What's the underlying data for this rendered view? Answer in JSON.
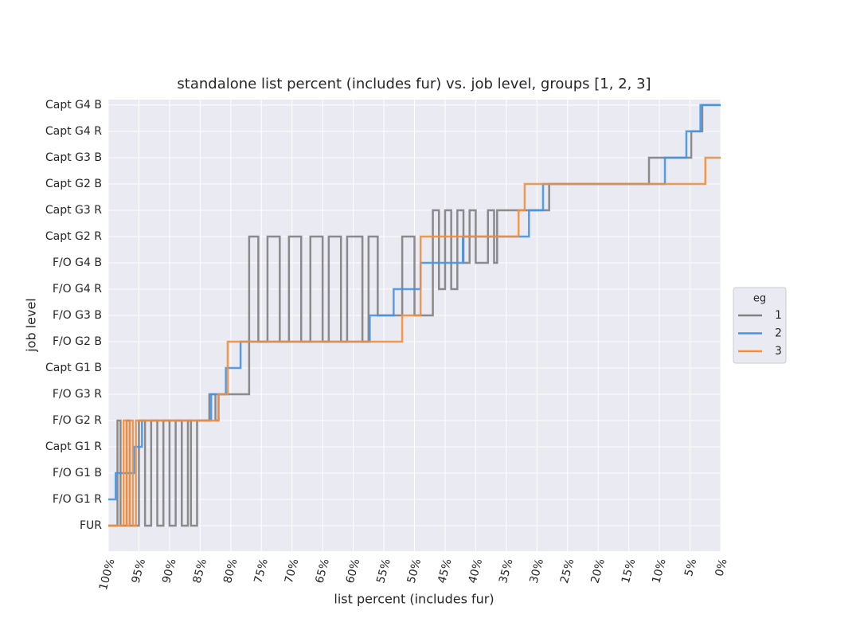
{
  "chart_data": {
    "type": "line",
    "title": "standalone list percent (includes fur) vs. job level, groups [1, 2, 3]",
    "x_label": "list percent (includes fur)",
    "y_label": "job level",
    "legend_title": "eg",
    "legend": "center right",
    "grid": true,
    "xlim": [
      100,
      0
    ],
    "ylim": [
      -0.97,
      16.21
    ],
    "xticks": [
      {
        "value": 100,
        "label": "100%"
      },
      {
        "value": 95,
        "label": "95%"
      },
      {
        "value": 90,
        "label": "90%"
      },
      {
        "value": 85,
        "label": "85%"
      },
      {
        "value": 80,
        "label": "80%"
      },
      {
        "value": 75,
        "label": "75%"
      },
      {
        "value": 70,
        "label": "70%"
      },
      {
        "value": 65,
        "label": "65%"
      },
      {
        "value": 60,
        "label": "60%"
      },
      {
        "value": 55,
        "label": "55%"
      },
      {
        "value": 50,
        "label": "50%"
      },
      {
        "value": 45,
        "label": "45%"
      },
      {
        "value": 40,
        "label": "40%"
      },
      {
        "value": 35,
        "label": "35%"
      },
      {
        "value": 30,
        "label": "30%"
      },
      {
        "value": 25,
        "label": "25%"
      },
      {
        "value": 20,
        "label": "20%"
      },
      {
        "value": 15,
        "label": "15%"
      },
      {
        "value": 10,
        "label": "10%"
      },
      {
        "value": 5,
        "label": "5%"
      },
      {
        "value": 0,
        "label": "0%"
      }
    ],
    "yticks": [
      {
        "value": 0,
        "label": "FUR"
      },
      {
        "value": 1,
        "label": "F/O G1 R"
      },
      {
        "value": 2,
        "label": "F/O G1 B"
      },
      {
        "value": 3,
        "label": "Capt G1 R"
      },
      {
        "value": 4,
        "label": "F/O G2 R"
      },
      {
        "value": 5,
        "label": "F/O G3 R"
      },
      {
        "value": 6,
        "label": "Capt G1 B"
      },
      {
        "value": 7,
        "label": "F/O G2 B"
      },
      {
        "value": 8,
        "label": "F/O G3 B"
      },
      {
        "value": 9,
        "label": "F/O G4 R"
      },
      {
        "value": 10,
        "label": "F/O G4 B"
      },
      {
        "value": 11,
        "label": "Capt G2 R"
      },
      {
        "value": 12,
        "label": "Capt G3 R"
      },
      {
        "value": 13,
        "label": "Capt G2 B"
      },
      {
        "value": 14,
        "label": "Capt G3 B"
      },
      {
        "value": 15,
        "label": "Capt G4 R"
      },
      {
        "value": 16,
        "label": "Capt G4 B"
      }
    ],
    "series": [
      {
        "name": "1",
        "color": "#808080",
        "x": [
          100,
          98.5,
          98.5,
          98,
          98,
          97,
          97,
          96.5,
          96.5,
          95,
          95,
          94,
          94,
          93,
          93,
          92,
          92,
          91,
          91,
          90,
          90,
          89,
          89,
          88,
          88,
          87,
          87,
          86.5,
          86.5,
          85.5,
          85.5,
          83.5,
          83.5,
          82.5,
          82.5,
          82,
          82,
          77,
          77,
          75.5,
          75.5,
          74,
          74,
          72,
          72,
          70.5,
          70.5,
          68.5,
          68.5,
          67,
          67,
          65,
          65,
          64,
          64,
          62,
          62,
          61,
          61,
          58.5,
          58.5,
          57.5,
          57.5,
          56,
          56,
          52,
          52,
          50,
          50,
          47,
          47,
          46,
          46,
          45,
          45,
          44,
          44,
          43,
          43,
          42,
          42,
          41,
          41,
          40,
          40,
          38,
          38,
          37,
          37,
          36.5,
          36.5,
          28,
          28,
          11.7,
          11.7,
          4.8,
          4.8,
          3,
          3,
          0
        ],
        "values": [
          0,
          0,
          4,
          4,
          0,
          0,
          4,
          4,
          0,
          0,
          4,
          4,
          0,
          0,
          4,
          4,
          0,
          0,
          4,
          4,
          0,
          0,
          4,
          4,
          0,
          0,
          4,
          4,
          0,
          0,
          4,
          4,
          5,
          5,
          4,
          4,
          5,
          5,
          11,
          11,
          7,
          7,
          11,
          11,
          7,
          7,
          11,
          11,
          7,
          7,
          11,
          11,
          7,
          7,
          11,
          11,
          7,
          7,
          11,
          11,
          7,
          7,
          11,
          11,
          8,
          8,
          11,
          11,
          8,
          8,
          12,
          12,
          9,
          9,
          12,
          12,
          9,
          9,
          12,
          12,
          10,
          10,
          12,
          12,
          10,
          10,
          12,
          12,
          10,
          10,
          12,
          12,
          13,
          13,
          14,
          14,
          15,
          15,
          16,
          16
        ]
      },
      {
        "name": "2",
        "color": "#4394e5",
        "x": [
          100,
          98.8,
          98.8,
          95.8,
          95.8,
          94.5,
          94.5,
          83.2,
          83.2,
          80.8,
          80.8,
          78.4,
          78.4,
          57.3,
          57.3,
          53.4,
          53.4,
          49,
          49,
          42.1,
          42.1,
          31.3,
          31.3,
          29,
          29,
          9.1,
          9.1,
          5.6,
          5.6,
          3.3,
          3.3,
          0
        ],
        "values": [
          1,
          1,
          2,
          2,
          3,
          3,
          4,
          4,
          5,
          5,
          6,
          6,
          7,
          7,
          8,
          8,
          9,
          9,
          10,
          10,
          11,
          11,
          12,
          12,
          13,
          13,
          14,
          14,
          15,
          15,
          16,
          16
        ]
      },
      {
        "name": "3",
        "color": "#f28e3c",
        "x": [
          100,
          97.5,
          97.5,
          97,
          97,
          96.5,
          96.5,
          96,
          96,
          95.5,
          95.5,
          82,
          82,
          80.5,
          80.5,
          52,
          52,
          49,
          49,
          33,
          33,
          32,
          32,
          2.5,
          2.5,
          0
        ],
        "values": [
          0,
          0,
          4,
          4,
          0,
          0,
          4,
          4,
          0,
          0,
          4,
          4,
          5,
          5,
          7,
          7,
          8,
          8,
          11,
          11,
          12,
          12,
          13,
          13,
          14,
          14
        ]
      }
    ]
  }
}
